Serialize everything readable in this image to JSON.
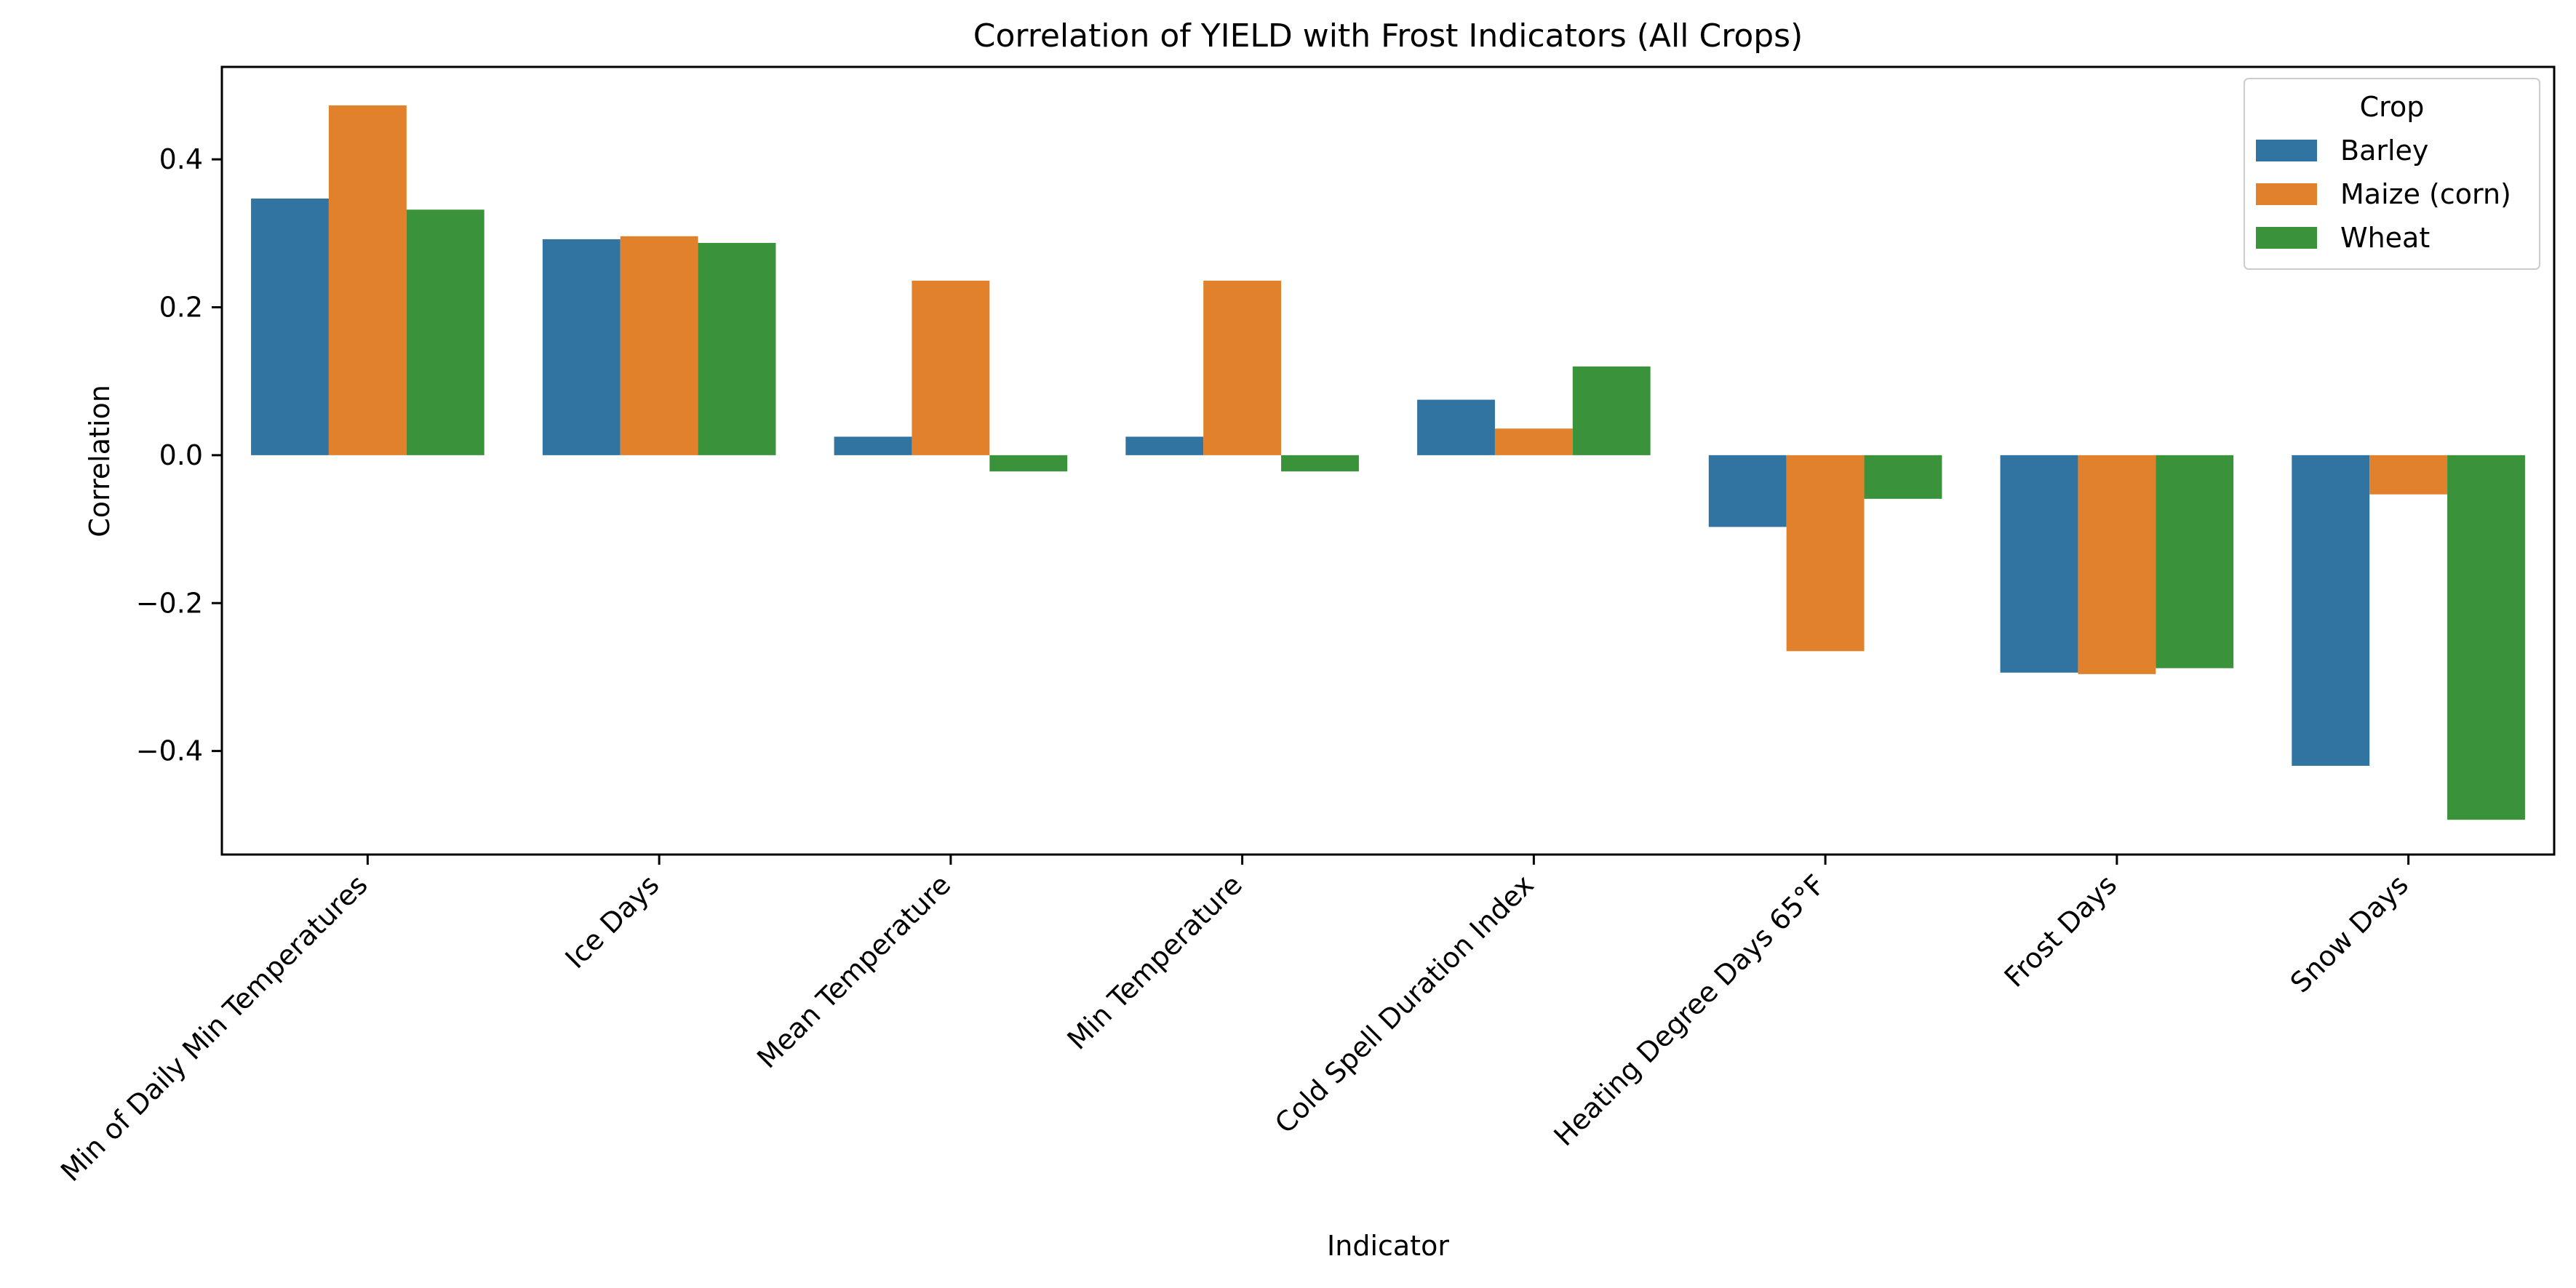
{
  "chart_data": {
    "type": "bar",
    "title": "Correlation of YIELD with Frost Indicators (All Crops)",
    "xlabel": "Indicator",
    "ylabel": "Correlation",
    "categories": [
      "Min of Daily Min Temperatures",
      "Ice Days",
      "Mean Temperature",
      "Min Temperature",
      "Cold Spell Duration Index",
      "Heating Degree Days 65°F",
      "Frost Days",
      "Snow Days"
    ],
    "series": [
      {
        "name": "Barley",
        "color": "#3274a1",
        "values": [
          0.347,
          0.292,
          0.025,
          0.025,
          0.075,
          -0.097,
          -0.294,
          -0.42
        ]
      },
      {
        "name": "Maize (corn)",
        "color": "#e1812c",
        "values": [
          0.473,
          0.296,
          0.236,
          0.236,
          0.036,
          -0.265,
          -0.296,
          -0.053
        ]
      },
      {
        "name": "Wheat",
        "color": "#3a923a",
        "values": [
          0.332,
          0.287,
          -0.022,
          -0.022,
          0.12,
          -0.059,
          -0.288,
          -0.493
        ]
      }
    ],
    "ylim": [
      -0.54,
      0.525
    ],
    "yticks": [
      -0.4,
      -0.2,
      0.0,
      0.2,
      0.4
    ],
    "ytick_labels": [
      "−0.4",
      "−0.2",
      "0.0",
      "0.2",
      "0.4"
    ],
    "grid": false,
    "legend": {
      "title": "Crop",
      "position": "top-right"
    }
  }
}
